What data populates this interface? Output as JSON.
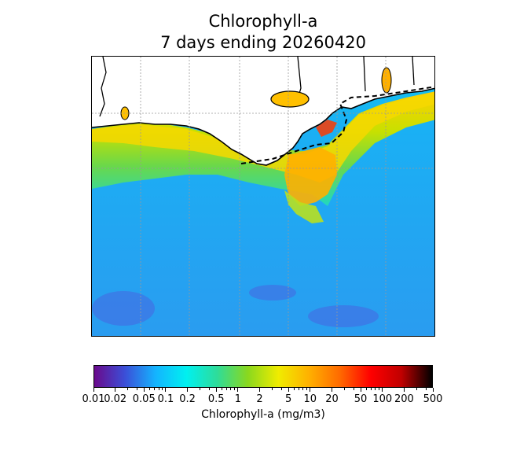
{
  "title": {
    "line1": "Chlorophyll-a",
    "line2": "7 days ending 20260420"
  },
  "colorbar": {
    "label": "Chlorophyll-a (mg/m3)",
    "ticks": [
      {
        "value": 0.01,
        "label": "0.01"
      },
      {
        "value": 0.02,
        "label": "0.02"
      },
      {
        "value": 0.05,
        "label": "0.05"
      },
      {
        "value": 0.1,
        "label": "0.1"
      },
      {
        "value": 0.2,
        "label": "0.2"
      },
      {
        "value": 0.5,
        "label": "0.5"
      },
      {
        "value": 1,
        "label": "1"
      },
      {
        "value": 2,
        "label": "2"
      },
      {
        "value": 5,
        "label": "5"
      },
      {
        "value": 10,
        "label": "10"
      },
      {
        "value": 20,
        "label": "20"
      },
      {
        "value": 50,
        "label": "50"
      },
      {
        "value": 100,
        "label": "100"
      },
      {
        "value": 200,
        "label": "200"
      },
      {
        "value": 500,
        "label": "500"
      }
    ],
    "range": [
      0.01,
      500
    ],
    "scale": "log",
    "colors": [
      "#6a0a8c",
      "#3b4fd8",
      "#14b4ff",
      "#00f0f0",
      "#2edc9a",
      "#8ad81e",
      "#f0ec00",
      "#ffb000",
      "#ff6a00",
      "#ff0000",
      "#c00000",
      "#000000"
    ]
  },
  "map": {
    "land_color": "#ffffff",
    "ocean_color": "#22a8f2",
    "gridlines": true
  }
}
